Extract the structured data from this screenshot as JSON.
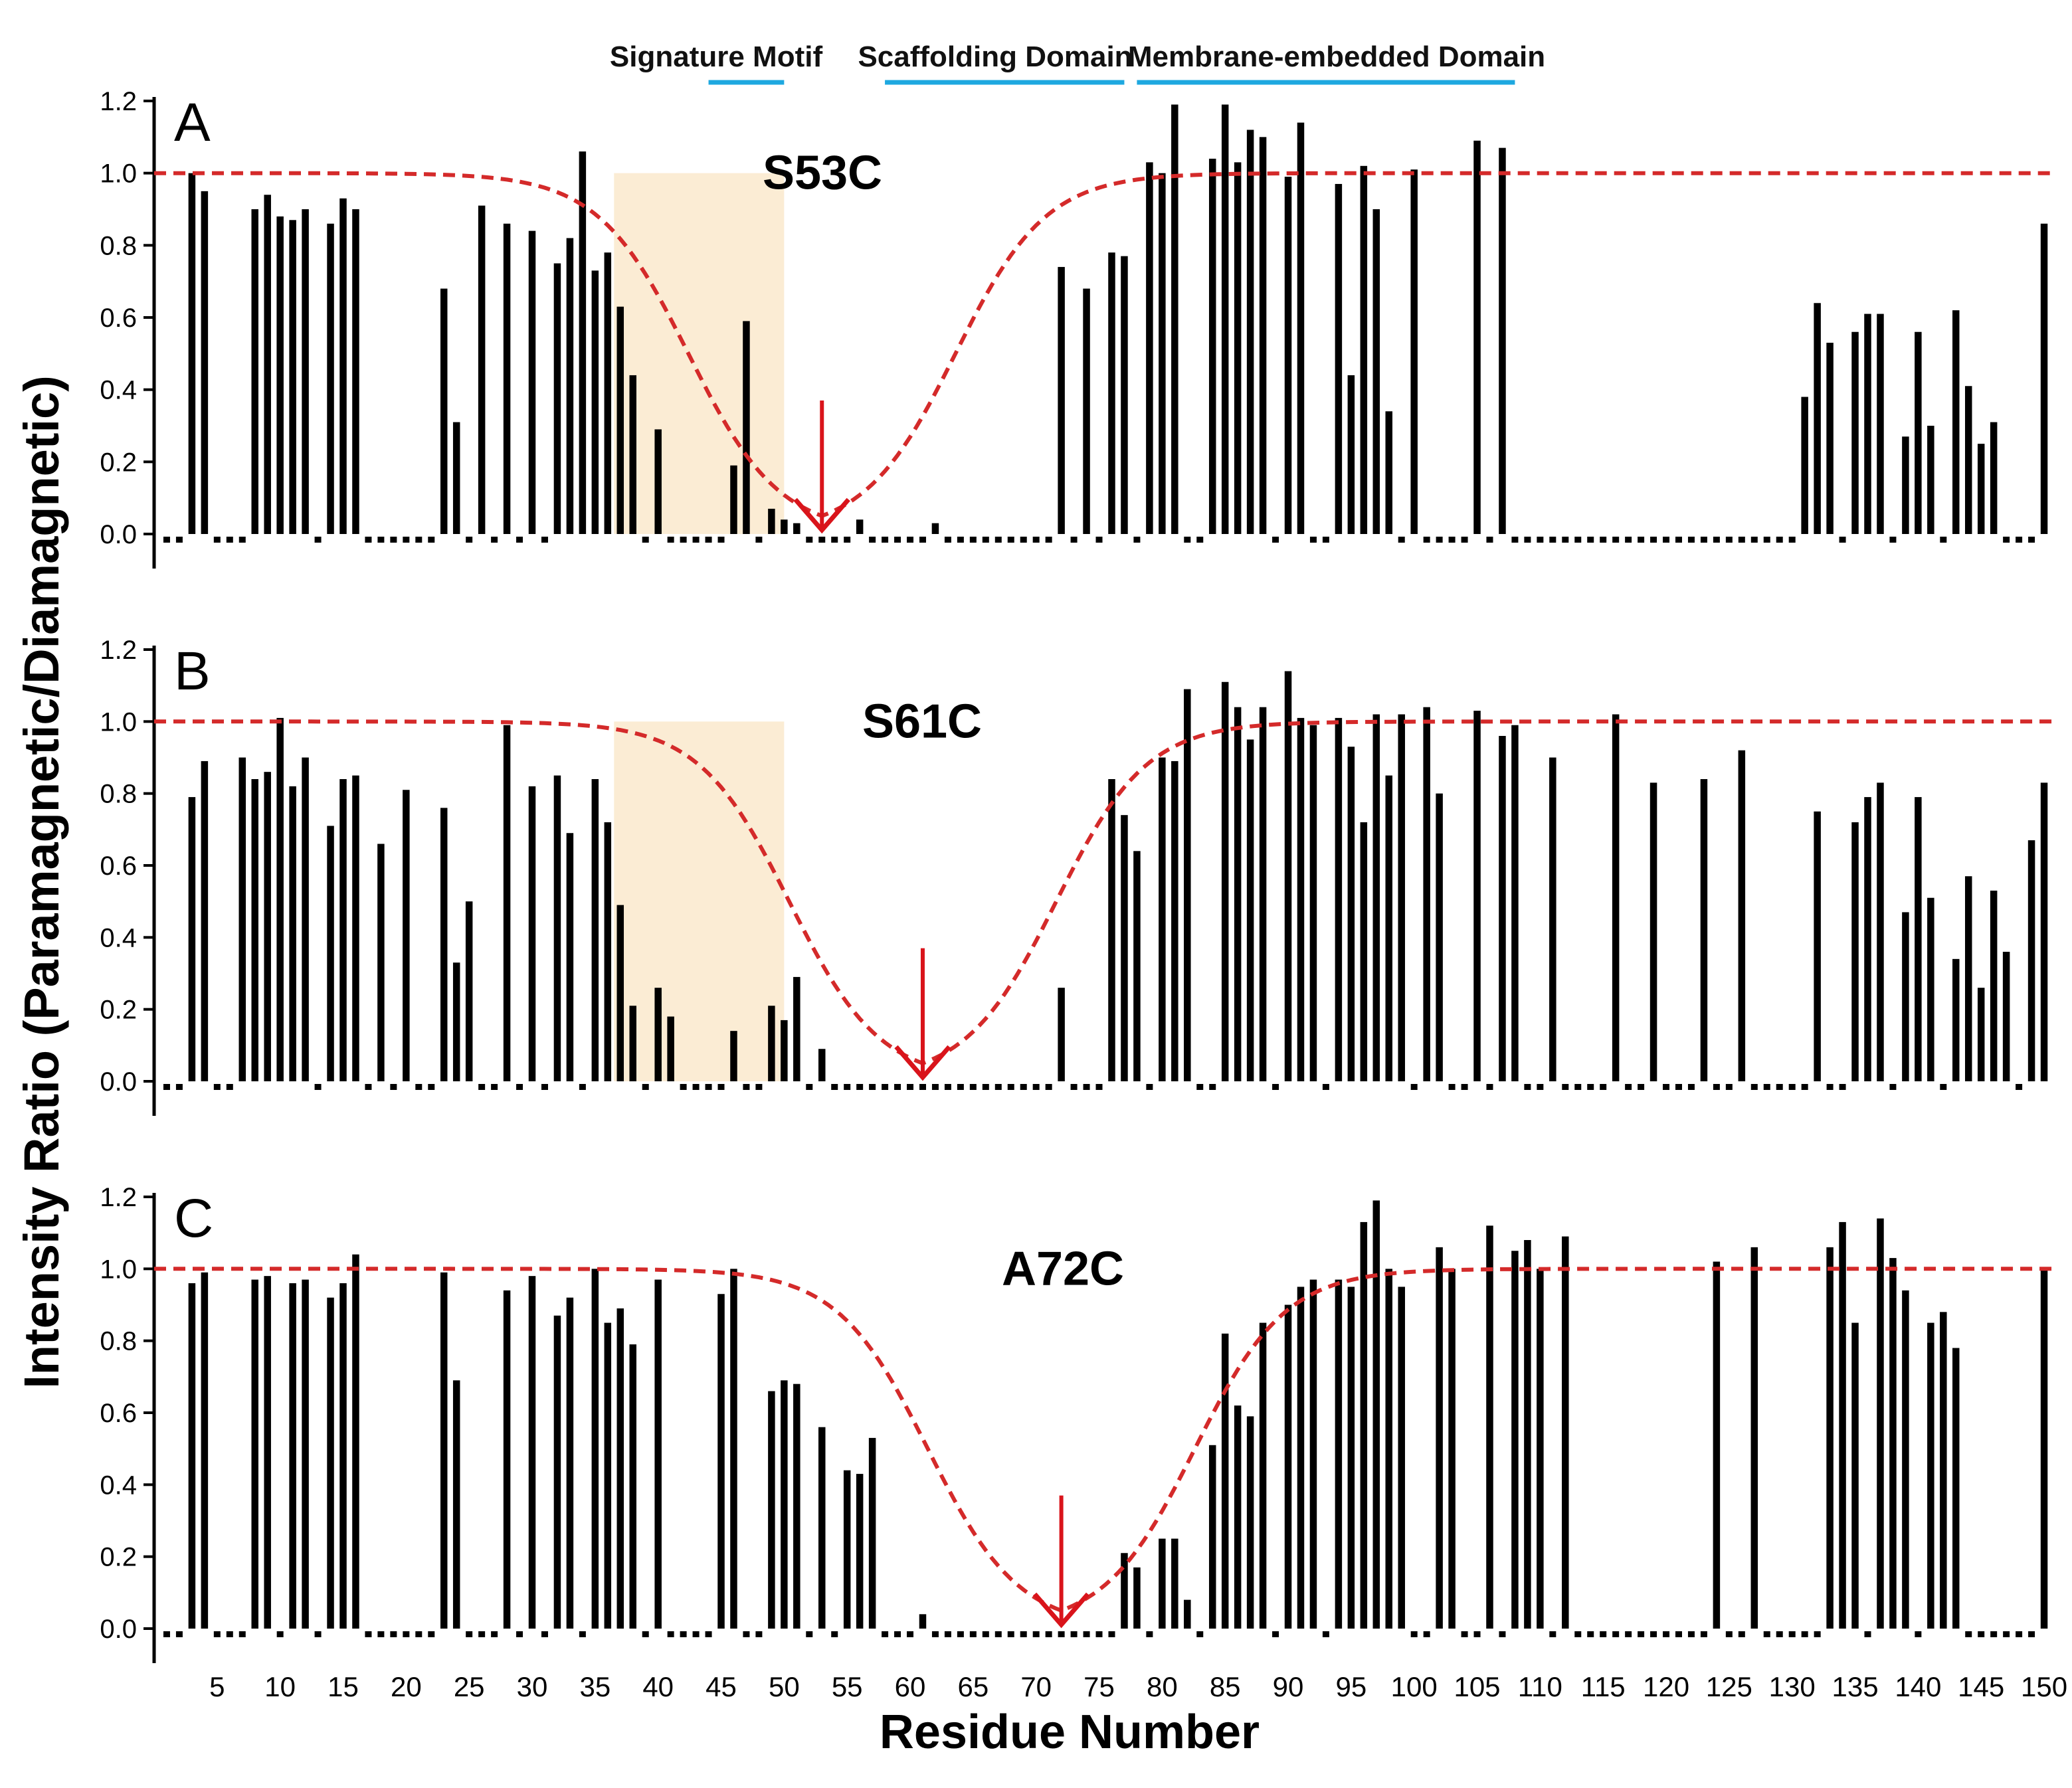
{
  "figure": {
    "ylabel": "Intensity Ratio (Paramagnetic/Diamagnetic)",
    "xlabel": "Residue Number",
    "x_ticks": [
      5,
      10,
      15,
      20,
      25,
      30,
      35,
      40,
      45,
      50,
      55,
      60,
      65,
      70,
      75,
      80,
      85,
      90,
      95,
      100,
      105,
      110,
      115,
      120,
      125,
      130,
      135,
      140,
      145,
      150
    ],
    "y_ticks": [
      "0.0",
      "0.2",
      "0.4",
      "0.6",
      "0.8",
      "1.0",
      "1.2"
    ],
    "domains": [
      {
        "label": "Signature Motif",
        "start": 44,
        "end": 50
      },
      {
        "label": "Scaffolding Domain",
        "start": 58,
        "end": 77
      },
      {
        "label": "Membrane-embedded Domain",
        "start": 78,
        "end": 108
      }
    ],
    "colors": {
      "bar": "#000000",
      "reference": "#d42a2a",
      "arrow": "#d9141b",
      "domain_line": "#1ea8e0",
      "shade": "#fbecd4"
    }
  },
  "chart_data": [
    {
      "type": "bar",
      "panel": "A",
      "mutant": "S53C",
      "label_site": 53,
      "shaded_region": [
        36.5,
        50
      ],
      "reference_line": 1.0,
      "xlim": [
        0,
        151
      ],
      "ylim": [
        0,
        1.2
      ],
      "bars": [
        [
          3,
          1.0
        ],
        [
          4,
          0.95
        ],
        [
          8,
          0.9
        ],
        [
          9,
          0.94
        ],
        [
          10,
          0.88
        ],
        [
          11,
          0.87
        ],
        [
          12,
          0.9
        ],
        [
          14,
          0.86
        ],
        [
          15,
          0.93
        ],
        [
          16,
          0.9
        ],
        [
          23,
          0.68
        ],
        [
          24,
          0.31
        ],
        [
          26,
          0.91
        ],
        [
          28,
          0.86
        ],
        [
          30,
          0.84
        ],
        [
          32,
          0.75
        ],
        [
          33,
          0.82
        ],
        [
          34,
          1.06
        ],
        [
          35,
          0.73
        ],
        [
          36,
          0.78
        ],
        [
          37,
          0.63
        ],
        [
          38,
          0.44
        ],
        [
          40,
          0.29
        ],
        [
          46,
          0.19
        ],
        [
          47,
          0.59
        ],
        [
          49,
          0.07
        ],
        [
          50,
          0.04
        ],
        [
          51,
          0.03
        ],
        [
          56,
          0.04
        ],
        [
          62,
          0.03
        ],
        [
          72,
          0.74
        ],
        [
          74,
          0.68
        ],
        [
          76,
          0.78
        ],
        [
          77,
          0.77
        ],
        [
          79,
          1.03
        ],
        [
          80,
          1.0
        ],
        [
          81,
          1.19
        ],
        [
          84,
          1.04
        ],
        [
          85,
          1.19
        ],
        [
          86,
          1.03
        ],
        [
          87,
          1.12
        ],
        [
          88,
          1.1
        ],
        [
          90,
          0.99
        ],
        [
          91,
          1.14
        ],
        [
          94,
          0.97
        ],
        [
          95,
          0.44
        ],
        [
          96,
          1.02
        ],
        [
          97,
          0.9
        ],
        [
          98,
          0.34
        ],
        [
          100,
          1.01
        ],
        [
          105,
          1.09
        ],
        [
          107,
          1.07
        ],
        [
          131,
          0.38
        ],
        [
          132,
          0.64
        ],
        [
          133,
          0.53
        ],
        [
          135,
          0.56
        ],
        [
          136,
          0.61
        ],
        [
          137,
          0.61
        ],
        [
          139,
          0.27
        ],
        [
          140,
          0.56
        ],
        [
          141,
          0.3
        ],
        [
          143,
          0.62
        ],
        [
          144,
          0.41
        ],
        [
          145,
          0.25
        ],
        [
          146,
          0.31
        ],
        [
          150,
          0.86
        ]
      ]
    },
    {
      "type": "bar",
      "panel": "B",
      "mutant": "S61C",
      "label_site": 61,
      "shaded_region": [
        36.5,
        50
      ],
      "reference_line": 1.0,
      "xlim": [
        0,
        151
      ],
      "ylim": [
        0,
        1.2
      ],
      "bars": [
        [
          3,
          0.79
        ],
        [
          4,
          0.89
        ],
        [
          7,
          0.9
        ],
        [
          8,
          0.84
        ],
        [
          9,
          0.86
        ],
        [
          10,
          1.01
        ],
        [
          11,
          0.82
        ],
        [
          12,
          0.9
        ],
        [
          14,
          0.71
        ],
        [
          15,
          0.84
        ],
        [
          16,
          0.85
        ],
        [
          18,
          0.66
        ],
        [
          20,
          0.81
        ],
        [
          23,
          0.76
        ],
        [
          24,
          0.33
        ],
        [
          25,
          0.5
        ],
        [
          28,
          0.99
        ],
        [
          30,
          0.82
        ],
        [
          32,
          0.85
        ],
        [
          33,
          0.69
        ],
        [
          35,
          0.84
        ],
        [
          36,
          0.72
        ],
        [
          37,
          0.49
        ],
        [
          38,
          0.21
        ],
        [
          40,
          0.26
        ],
        [
          41,
          0.18
        ],
        [
          46,
          0.14
        ],
        [
          49,
          0.21
        ],
        [
          50,
          0.17
        ],
        [
          51,
          0.29
        ],
        [
          53,
          0.09
        ],
        [
          72,
          0.26
        ],
        [
          76,
          0.84
        ],
        [
          77,
          0.74
        ],
        [
          78,
          0.64
        ],
        [
          80,
          0.9
        ],
        [
          81,
          0.89
        ],
        [
          82,
          1.09
        ],
        [
          85,
          1.11
        ],
        [
          86,
          1.04
        ],
        [
          87,
          0.95
        ],
        [
          88,
          1.04
        ],
        [
          90,
          1.14
        ],
        [
          91,
          1.01
        ],
        [
          92,
          0.99
        ],
        [
          94,
          1.01
        ],
        [
          95,
          0.93
        ],
        [
          96,
          0.72
        ],
        [
          97,
          1.02
        ],
        [
          98,
          0.85
        ],
        [
          99,
          1.02
        ],
        [
          101,
          1.04
        ],
        [
          102,
          0.8
        ],
        [
          105,
          1.03
        ],
        [
          107,
          0.96
        ],
        [
          108,
          0.99
        ],
        [
          111,
          0.9
        ],
        [
          116,
          1.02
        ],
        [
          119,
          0.83
        ],
        [
          123,
          0.84
        ],
        [
          126,
          0.92
        ],
        [
          132,
          0.75
        ],
        [
          135,
          0.72
        ],
        [
          136,
          0.79
        ],
        [
          137,
          0.83
        ],
        [
          139,
          0.47
        ],
        [
          140,
          0.79
        ],
        [
          141,
          0.51
        ],
        [
          143,
          0.34
        ],
        [
          144,
          0.57
        ],
        [
          145,
          0.26
        ],
        [
          146,
          0.53
        ],
        [
          147,
          0.36
        ],
        [
          149,
          0.67
        ],
        [
          150,
          0.83
        ]
      ]
    },
    {
      "type": "bar",
      "panel": "C",
      "mutant": "A72C",
      "label_site": 72,
      "shaded_region": null,
      "reference_line": 1.0,
      "xlim": [
        0,
        151
      ],
      "ylim": [
        0,
        1.2
      ],
      "bars": [
        [
          3,
          0.96
        ],
        [
          4,
          0.99
        ],
        [
          8,
          0.97
        ],
        [
          9,
          0.98
        ],
        [
          11,
          0.96
        ],
        [
          12,
          0.97
        ],
        [
          14,
          0.92
        ],
        [
          15,
          0.96
        ],
        [
          16,
          1.04
        ],
        [
          23,
          0.99
        ],
        [
          24,
          0.69
        ],
        [
          28,
          0.94
        ],
        [
          30,
          0.98
        ],
        [
          32,
          0.87
        ],
        [
          33,
          0.92
        ],
        [
          35,
          1.0
        ],
        [
          36,
          0.85
        ],
        [
          37,
          0.89
        ],
        [
          38,
          0.79
        ],
        [
          40,
          0.97
        ],
        [
          45,
          0.93
        ],
        [
          46,
          1.0
        ],
        [
          49,
          0.66
        ],
        [
          50,
          0.69
        ],
        [
          51,
          0.68
        ],
        [
          53,
          0.56
        ],
        [
          55,
          0.44
        ],
        [
          56,
          0.43
        ],
        [
          57,
          0.53
        ],
        [
          61,
          0.04
        ],
        [
          77,
          0.21
        ],
        [
          78,
          0.17
        ],
        [
          80,
          0.25
        ],
        [
          81,
          0.25
        ],
        [
          82,
          0.08
        ],
        [
          84,
          0.51
        ],
        [
          85,
          0.82
        ],
        [
          86,
          0.62
        ],
        [
          87,
          0.59
        ],
        [
          88,
          0.85
        ],
        [
          90,
          0.9
        ],
        [
          91,
          0.95
        ],
        [
          92,
          0.97
        ],
        [
          94,
          0.97
        ],
        [
          95,
          0.95
        ],
        [
          96,
          1.13
        ],
        [
          97,
          1.19
        ],
        [
          98,
          1.0
        ],
        [
          99,
          0.95
        ],
        [
          102,
          1.06
        ],
        [
          103,
          1.0
        ],
        [
          106,
          1.12
        ],
        [
          108,
          1.05
        ],
        [
          109,
          1.08
        ],
        [
          110,
          1.0
        ],
        [
          112,
          1.09
        ],
        [
          124,
          1.02
        ],
        [
          127,
          1.06
        ],
        [
          133,
          1.06
        ],
        [
          134,
          1.13
        ],
        [
          135,
          0.85
        ],
        [
          137,
          1.14
        ],
        [
          138,
          1.03
        ],
        [
          139,
          0.94
        ],
        [
          141,
          0.85
        ],
        [
          142,
          0.88
        ],
        [
          143,
          0.78
        ],
        [
          150,
          1.0
        ]
      ]
    }
  ]
}
